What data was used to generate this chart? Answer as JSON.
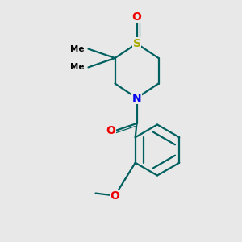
{
  "bg_color": "#e8e8e8",
  "bond_color": "#006060",
  "N_color": "#0000ee",
  "O_color": "#ee0000",
  "S_color": "#aaaa00",
  "lw": 1.6,
  "figsize": [
    3.0,
    3.0
  ],
  "dpi": 100,
  "xlim": [
    0,
    10
  ],
  "ylim": [
    0,
    10
  ]
}
